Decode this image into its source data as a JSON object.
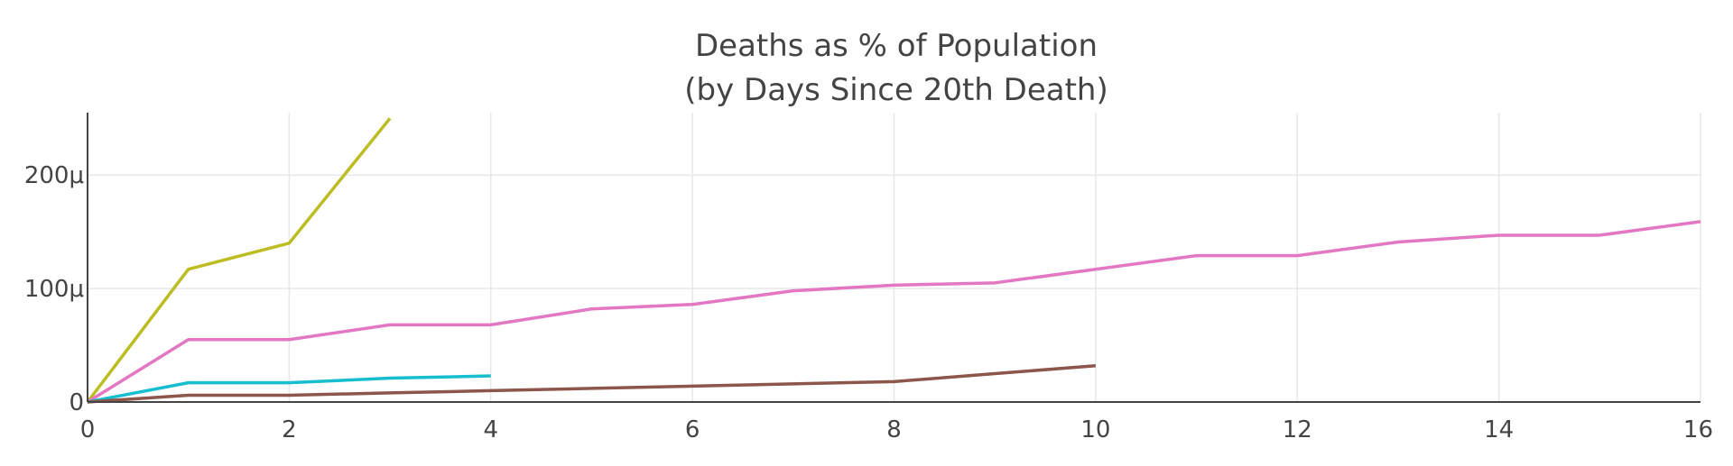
{
  "chart_data": {
    "type": "line",
    "title": "Deaths as % of Population",
    "subtitle": "(by Days Since 20th Death)",
    "xlabel": "",
    "ylabel": "",
    "xlim": [
      0,
      16
    ],
    "ylim": [
      0,
      0.000255
    ],
    "x_ticks": [
      0,
      2,
      4,
      6,
      8,
      10,
      12,
      14,
      16
    ],
    "x_tick_labels": [
      "0",
      "2",
      "4",
      "6",
      "8",
      "10",
      "12",
      "14",
      "16"
    ],
    "y_ticks": [
      0,
      0.0001,
      0.0002
    ],
    "y_tick_labels": [
      "0",
      "100μ",
      "200μ"
    ],
    "grid": true,
    "legend": "none",
    "series": [
      {
        "color": "#bcbd22",
        "x": [
          0,
          1,
          2,
          3
        ],
        "y": [
          0,
          0.000117,
          0.00014,
          0.00025
        ]
      },
      {
        "color": "#e377c2",
        "x": [
          0,
          1,
          2,
          3,
          4,
          5,
          6,
          7,
          8,
          9,
          10,
          11,
          12,
          13,
          14,
          15,
          16
        ],
        "y": [
          0,
          5.5e-05,
          5.5e-05,
          6.8e-05,
          6.8e-05,
          8.2e-05,
          8.6e-05,
          9.8e-05,
          0.000103,
          0.000105,
          0.000117,
          0.000129,
          0.000129,
          0.000141,
          0.000147,
          0.000147,
          0.000159
        ]
      },
      {
        "color": "#17becf",
        "x": [
          0,
          1,
          2,
          3,
          4
        ],
        "y": [
          0,
          1.7e-05,
          1.7e-05,
          2.1e-05,
          2.3e-05
        ]
      },
      {
        "color": "#8c564b",
        "x": [
          0,
          1,
          2,
          3,
          4,
          5,
          6,
          7,
          8,
          9,
          10
        ],
        "y": [
          0,
          6e-06,
          6e-06,
          8e-06,
          1e-05,
          1.2e-05,
          1.4e-05,
          1.6e-05,
          1.8e-05,
          2.5e-05,
          3.2e-05
        ]
      }
    ]
  }
}
